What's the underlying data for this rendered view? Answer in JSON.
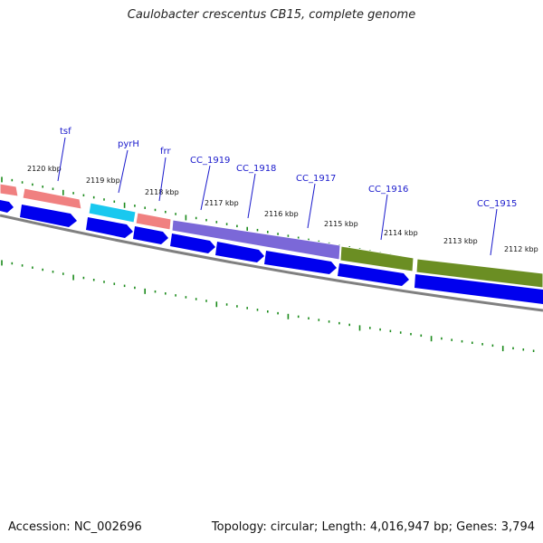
{
  "title": "Caulobacter crescentus CB15, complete genome",
  "accession": "Accession: NC_002696",
  "summary": "Topology: circular; Length: 4,016,947 bp; Genes: 3,794",
  "colors": {
    "salmon": "#f08080",
    "cyan": "#19c8ef",
    "purple": "#7b68d8",
    "olive": "#6b8e23",
    "cds_blue": "#0000ee",
    "backbone": "#808080",
    "gc_green": "#1a8a1a",
    "label_blue": "#1a1acc"
  },
  "scale_ticks": [
    {
      "text": "2120 kbp"
    },
    {
      "text": "2119 kbp"
    },
    {
      "text": "2118 kbp"
    },
    {
      "text": "2117 kbp"
    },
    {
      "text": "2116 kbp"
    },
    {
      "text": "2115 kbp"
    },
    {
      "text": "2114 kbp"
    },
    {
      "text": "2113 kbp"
    },
    {
      "text": "2112 kbp"
    }
  ],
  "gene_labels": [
    {
      "text": "tsf"
    },
    {
      "text": "pyrH"
    },
    {
      "text": "frr"
    },
    {
      "text": "CC_1919"
    },
    {
      "text": "CC_1918"
    },
    {
      "text": "CC_1917"
    },
    {
      "text": "CC_1916"
    },
    {
      "text": "CC_1915"
    }
  ]
}
